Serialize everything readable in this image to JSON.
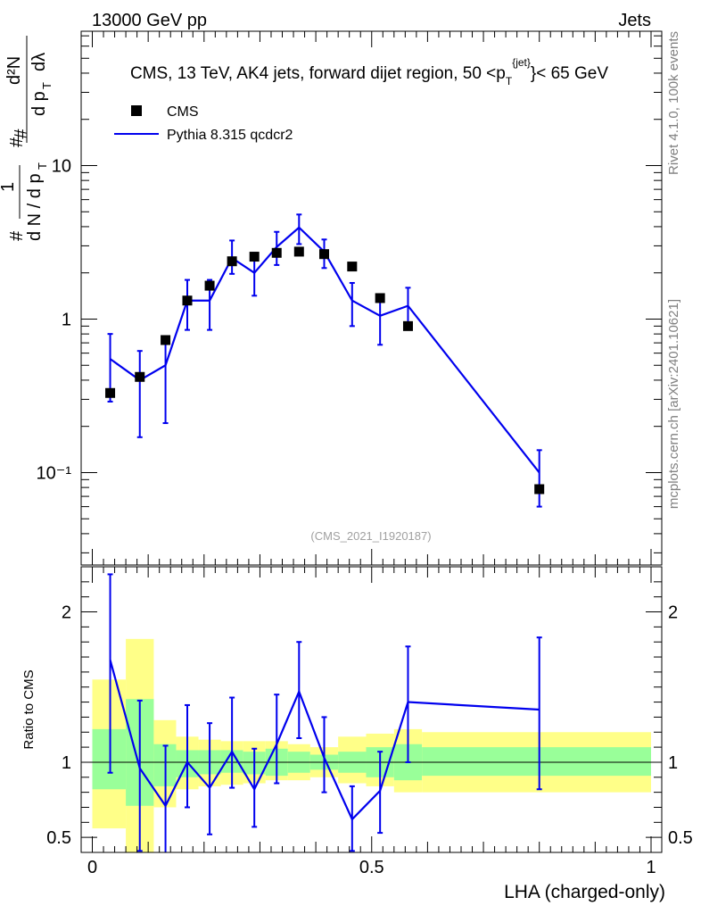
{
  "header": {
    "left": "13000 GeV pp",
    "right": "Jets"
  },
  "side_labels": {
    "rivet": "Rivet 4.1.0,  100k events",
    "mcplots": "mcplots.cern.ch [arXiv:2401.10621]"
  },
  "colors": {
    "mc": "#0000ee",
    "band_1sigma": "#99ff99",
    "band_2sigma": "#ffff88",
    "data": "#000000"
  },
  "chart_data": [
    {
      "panel": "main",
      "type": "scatter",
      "log_y": true,
      "title": "CMS, 13 TeV, AK4 jets, forward dijet region, 50 <p_T^{jet}< 65 GeV",
      "ylabel": "1/dN/dpT  d²N/dpT dλ",
      "analysis_id": "(CMS_2021_I1920187)",
      "xlim": [
        0,
        1
      ],
      "ylim": [
        0.025,
        75
      ],
      "y_ticks": [
        {
          "value": 10,
          "label": "10"
        },
        {
          "value": 1,
          "label": "1"
        },
        {
          "value": 0.1,
          "label": "10⁻¹"
        }
      ],
      "legend": {
        "placement": "top-left",
        "entries": [
          {
            "label": "CMS",
            "marker": "square"
          },
          {
            "label": "Pythia 8.315 qcdcr2",
            "marker": "line"
          }
        ]
      },
      "series": [
        {
          "name": "CMS",
          "x": [
            0.032,
            0.085,
            0.131,
            0.17,
            0.21,
            0.25,
            0.29,
            0.33,
            0.37,
            0.415,
            0.465,
            0.515,
            0.565,
            0.8
          ],
          "values": [
            0.33,
            0.42,
            0.73,
            1.32,
            1.65,
            2.38,
            2.55,
            2.7,
            2.75,
            2.65,
            2.2,
            1.37,
            0.9,
            0.078
          ]
        },
        {
          "name": "Pythia 8.315 qcdcr2",
          "x": [
            0.032,
            0.085,
            0.131,
            0.17,
            0.21,
            0.25,
            0.29,
            0.33,
            0.37,
            0.415,
            0.465,
            0.515,
            0.565,
            0.8
          ],
          "values": [
            0.55,
            0.4,
            0.5,
            1.32,
            1.32,
            2.5,
            2.0,
            2.95,
            3.95,
            2.75,
            1.32,
            1.05,
            1.22,
            0.1
          ],
          "err_low": [
            0.26,
            0.23,
            0.29,
            0.47,
            0.47,
            0.53,
            0.58,
            0.7,
            0.87,
            0.6,
            0.42,
            0.37,
            0.34,
            0.04
          ],
          "err_high": [
            0.25,
            0.22,
            0.25,
            0.48,
            0.48,
            0.75,
            0.7,
            0.75,
            0.85,
            0.55,
            0.4,
            0.35,
            0.38,
            0.04
          ]
        }
      ]
    },
    {
      "panel": "ratio",
      "type": "line",
      "xlabel": "LHA (charged-only)",
      "ylabel": "Ratio to CMS",
      "xlim": [
        0,
        1
      ],
      "ylim": [
        0.4,
        2.3
      ],
      "x_ticks": [
        {
          "value": 0,
          "label": "0"
        },
        {
          "value": 0.5,
          "label": "0.5"
        },
        {
          "value": 1,
          "label": "1"
        }
      ],
      "y_ticks": [
        {
          "value": 2,
          "label": "2"
        },
        {
          "value": 1,
          "label": "1"
        },
        {
          "value": 0.5,
          "label": "0.5"
        }
      ],
      "bins": [
        0,
        0.06,
        0.11,
        0.15,
        0.19,
        0.23,
        0.27,
        0.31,
        0.35,
        0.39,
        0.44,
        0.49,
        0.54,
        0.59,
        1.0
      ],
      "band_1sigma_low": [
        0.82,
        0.71,
        0.84,
        0.9,
        0.92,
        0.93,
        0.92,
        0.91,
        0.93,
        0.95,
        0.93,
        0.9,
        0.88,
        0.91
      ],
      "band_1sigma_high": [
        1.22,
        1.42,
        1.12,
        1.08,
        1.08,
        1.08,
        1.07,
        1.09,
        1.07,
        1.05,
        1.07,
        1.1,
        1.12,
        1.1
      ],
      "band_2sigma_low": [
        0.56,
        0.33,
        0.7,
        0.82,
        0.84,
        0.85,
        0.86,
        0.88,
        0.88,
        0.9,
        0.86,
        0.84,
        0.8,
        0.8
      ],
      "band_2sigma_high": [
        1.55,
        1.82,
        1.28,
        1.17,
        1.15,
        1.14,
        1.14,
        1.14,
        1.12,
        1.1,
        1.17,
        1.19,
        1.22,
        1.2
      ],
      "series": [
        {
          "name": "Pythia 8.315 qcdcr2 / CMS",
          "x": [
            0.032,
            0.085,
            0.131,
            0.17,
            0.21,
            0.25,
            0.29,
            0.33,
            0.37,
            0.415,
            0.465,
            0.515,
            0.565,
            0.8
          ],
          "values": [
            1.68,
            0.96,
            0.71,
            1.0,
            0.83,
            1.07,
            0.82,
            1.12,
            1.47,
            1.03,
            0.62,
            0.81,
            1.4,
            1.35
          ],
          "err_low": [
            0.75,
            0.55,
            0.4,
            0.3,
            0.31,
            0.24,
            0.25,
            0.26,
            0.31,
            0.23,
            0.21,
            0.28,
            0.4,
            0.53
          ],
          "err_high": [
            0.57,
            0.45,
            0.4,
            0.38,
            0.43,
            0.36,
            0.27,
            0.33,
            0.33,
            0.27,
            0.22,
            0.26,
            0.37,
            0.48
          ]
        }
      ]
    }
  ]
}
